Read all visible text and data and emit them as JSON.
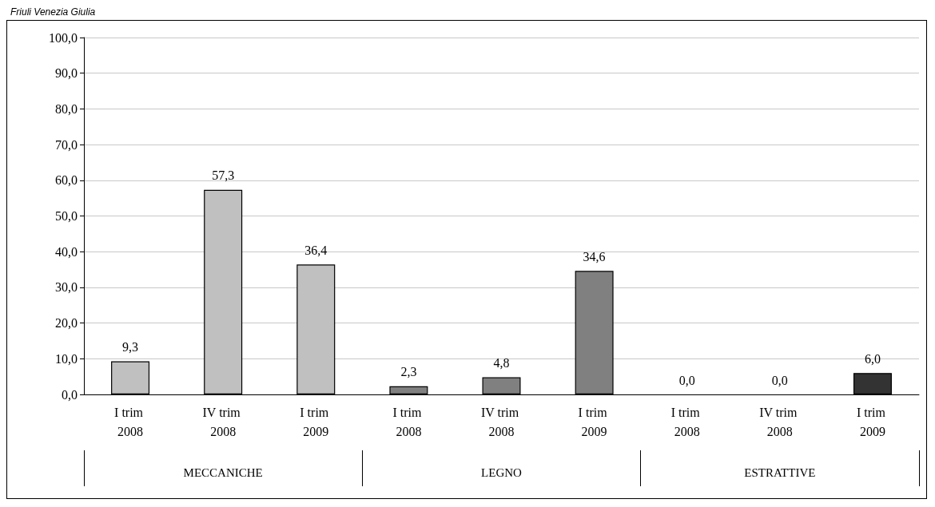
{
  "chart_data": {
    "type": "bar",
    "title": "Friuli Venezia Giulia",
    "categories": [
      "I trim 2008",
      "IV trim 2008",
      "I trim 2009",
      "I trim 2008",
      "IV trim 2008",
      "I trim 2009",
      "I trim 2008",
      "IV trim 2008",
      "I trim 2009"
    ],
    "values": [
      9.3,
      57.3,
      36.4,
      2.3,
      4.8,
      34.6,
      0.0,
      0.0,
      6.0
    ],
    "colors": [
      "#c0c0c0",
      "#c0c0c0",
      "#c0c0c0",
      "#808080",
      "#808080",
      "#808080",
      "#333333",
      "#333333",
      "#333333"
    ],
    "value_labels": [
      "9,3",
      "57,3",
      "36,4",
      "2,3",
      "4,8",
      "34,6",
      "0,0",
      "0,0",
      "6,0"
    ],
    "annotations": [
      "MECCANICHE",
      "LEGNO",
      "ESTRATTIVE"
    ],
    "ylim": [
      0,
      100
    ],
    "yticks": [
      {
        "value": 0,
        "label": "0,0"
      },
      {
        "value": 10,
        "label": "10,0"
      },
      {
        "value": 20,
        "label": "20,0"
      },
      {
        "value": 30,
        "label": "30,0"
      },
      {
        "value": 40,
        "label": "40,0"
      },
      {
        "value": 50,
        "label": "50,0"
      },
      {
        "value": 60,
        "label": "60,0"
      },
      {
        "value": 70,
        "label": "70,0"
      },
      {
        "value": 80,
        "label": "80,0"
      },
      {
        "value": 90,
        "label": "90,0"
      },
      {
        "value": 100,
        "label": "100,0"
      }
    ],
    "grid": "y"
  }
}
